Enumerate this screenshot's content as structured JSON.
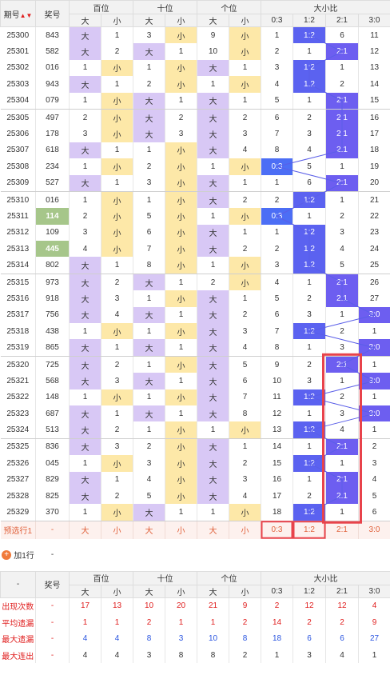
{
  "header": {
    "issue": "期号",
    "prize": "奖号",
    "hundreds": "百位",
    "tens": "十位",
    "units": "个位",
    "ratio": "大小比",
    "big": "大",
    "small": "小",
    "ratios": [
      "0:3",
      "1:2",
      "2:1",
      "3:0"
    ]
  },
  "rows": [
    {
      "issue": "25300",
      "prize": "843",
      "h": [
        "大",
        "1"
      ],
      "t": [
        "3",
        "小"
      ],
      "u": [
        "9",
        "小"
      ],
      "r": [
        "1",
        "1:2",
        "6",
        "11"
      ],
      "hl": 1
    },
    {
      "issue": "25301",
      "prize": "582",
      "h": [
        "大",
        "2"
      ],
      "t": [
        "大",
        "1"
      ],
      "u": [
        "10",
        "小"
      ],
      "r": [
        "2",
        "1",
        "2:1",
        "12"
      ],
      "hl": 2
    },
    {
      "issue": "25302",
      "prize": "016",
      "h": [
        "1",
        "小"
      ],
      "t": [
        "1",
        "小"
      ],
      "u": [
        "大",
        "1"
      ],
      "r": [
        "3",
        "1:2",
        "1",
        "13"
      ],
      "hl": 1
    },
    {
      "issue": "25303",
      "prize": "943",
      "h": [
        "大",
        "1"
      ],
      "t": [
        "2",
        "小"
      ],
      "u": [
        "1",
        "小"
      ],
      "r": [
        "4",
        "1:2",
        "2",
        "14"
      ],
      "hl": 1
    },
    {
      "issue": "25304",
      "prize": "079",
      "h": [
        "1",
        "小"
      ],
      "t": [
        "大",
        "1"
      ],
      "u": [
        "大",
        "1"
      ],
      "r": [
        "5",
        "1",
        "2:1",
        "15"
      ],
      "hl": 2
    },
    {
      "issue": "25305",
      "prize": "497",
      "h": [
        "2",
        "小"
      ],
      "t": [
        "大",
        "2"
      ],
      "u": [
        "大",
        "2"
      ],
      "r": [
        "6",
        "2",
        "2:1",
        "16"
      ],
      "hl": 2
    },
    {
      "issue": "25306",
      "prize": "178",
      "h": [
        "3",
        "小"
      ],
      "t": [
        "大",
        "3"
      ],
      "u": [
        "大",
        "3"
      ],
      "r": [
        "7",
        "3",
        "2:1",
        "17"
      ],
      "hl": 2
    },
    {
      "issue": "25307",
      "prize": "618",
      "h": [
        "大",
        "1"
      ],
      "t": [
        "1",
        "小"
      ],
      "u": [
        "大",
        "4"
      ],
      "r": [
        "8",
        "4",
        "2:1",
        "18"
      ],
      "hl": 2
    },
    {
      "issue": "25308",
      "prize": "234",
      "h": [
        "1",
        "小"
      ],
      "t": [
        "2",
        "小"
      ],
      "u": [
        "1",
        "小"
      ],
      "r": [
        "0:3",
        "5",
        "1",
        "19"
      ],
      "hl": 0
    },
    {
      "issue": "25309",
      "prize": "527",
      "h": [
        "大",
        "1"
      ],
      "t": [
        "3",
        "小"
      ],
      "u": [
        "大",
        "1"
      ],
      "r": [
        "1",
        "6",
        "2:1",
        "20"
      ],
      "hl": 2
    },
    {
      "issue": "25310",
      "prize": "016",
      "h": [
        "1",
        "小"
      ],
      "t": [
        "1",
        "小"
      ],
      "u": [
        "大",
        "2"
      ],
      "r": [
        "2",
        "1:2",
        "1",
        "21"
      ],
      "hl": 1
    },
    {
      "issue": "25311",
      "prize": "114",
      "h": [
        "2",
        "小"
      ],
      "t": [
        "5",
        "小"
      ],
      "u": [
        "1",
        "小"
      ],
      "r": [
        "0:3",
        "1",
        "2",
        "22"
      ],
      "hl": 0,
      "green": true
    },
    {
      "issue": "25312",
      "prize": "109",
      "h": [
        "3",
        "小"
      ],
      "t": [
        "6",
        "小"
      ],
      "u": [
        "大",
        "1"
      ],
      "r": [
        "1",
        "1:2",
        "3",
        "23"
      ],
      "hl": 1
    },
    {
      "issue": "25313",
      "prize": "445",
      "h": [
        "4",
        "小"
      ],
      "t": [
        "7",
        "小"
      ],
      "u": [
        "大",
        "2"
      ],
      "r": [
        "2",
        "1:2",
        "4",
        "24"
      ],
      "hl": 1,
      "green": true
    },
    {
      "issue": "25314",
      "prize": "802",
      "h": [
        "大",
        "1"
      ],
      "t": [
        "8",
        "小"
      ],
      "u": [
        "1",
        "小"
      ],
      "r": [
        "3",
        "1:2",
        "5",
        "25"
      ],
      "hl": 1
    },
    {
      "issue": "25315",
      "prize": "973",
      "h": [
        "大",
        "2"
      ],
      "t": [
        "大",
        "1"
      ],
      "u": [
        "2",
        "小"
      ],
      "r": [
        "4",
        "1",
        "2:1",
        "26"
      ],
      "hl": 2
    },
    {
      "issue": "25316",
      "prize": "918",
      "h": [
        "大",
        "3"
      ],
      "t": [
        "1",
        "小"
      ],
      "u": [
        "大",
        "1"
      ],
      "r": [
        "5",
        "2",
        "2:1",
        "27"
      ],
      "hl": 2
    },
    {
      "issue": "25317",
      "prize": "756",
      "h": [
        "大",
        "4"
      ],
      "t": [
        "大",
        "1"
      ],
      "u": [
        "大",
        "2"
      ],
      "r": [
        "6",
        "3",
        "1",
        "3:0"
      ],
      "hl": 3
    },
    {
      "issue": "25318",
      "prize": "438",
      "h": [
        "1",
        "小"
      ],
      "t": [
        "1",
        "小"
      ],
      "u": [
        "大",
        "3"
      ],
      "r": [
        "7",
        "1:2",
        "2",
        "1"
      ],
      "hl": 1
    },
    {
      "issue": "25319",
      "prize": "865",
      "h": [
        "大",
        "1"
      ],
      "t": [
        "大",
        "1"
      ],
      "u": [
        "大",
        "4"
      ],
      "r": [
        "8",
        "1",
        "3",
        "3:0"
      ],
      "hl": 3
    },
    {
      "issue": "25320",
      "prize": "725",
      "h": [
        "大",
        "2"
      ],
      "t": [
        "1",
        "小"
      ],
      "u": [
        "大",
        "5"
      ],
      "r": [
        "9",
        "2",
        "2:1",
        "1"
      ],
      "hl": 2
    },
    {
      "issue": "25321",
      "prize": "568",
      "h": [
        "大",
        "3"
      ],
      "t": [
        "大",
        "1"
      ],
      "u": [
        "大",
        "6"
      ],
      "r": [
        "10",
        "3",
        "1",
        "3:0"
      ],
      "hl": 3
    },
    {
      "issue": "25322",
      "prize": "148",
      "h": [
        "1",
        "小"
      ],
      "t": [
        "1",
        "小"
      ],
      "u": [
        "大",
        "7"
      ],
      "r": [
        "11",
        "1:2",
        "2",
        "1"
      ],
      "hl": 1
    },
    {
      "issue": "25323",
      "prize": "687",
      "h": [
        "大",
        "1"
      ],
      "t": [
        "大",
        "1"
      ],
      "u": [
        "大",
        "8"
      ],
      "r": [
        "12",
        "1",
        "3",
        "3:0"
      ],
      "hl": 3
    },
    {
      "issue": "25324",
      "prize": "513",
      "h": [
        "大",
        "2"
      ],
      "t": [
        "1",
        "小"
      ],
      "u": [
        "1",
        "小"
      ],
      "r": [
        "13",
        "1:2",
        "4",
        "1"
      ],
      "hl": 1
    },
    {
      "issue": "25325",
      "prize": "836",
      "h": [
        "大",
        "3"
      ],
      "t": [
        "2",
        "小"
      ],
      "u": [
        "大",
        "1"
      ],
      "r": [
        "14",
        "1",
        "2:1",
        "2"
      ],
      "hl": 2
    },
    {
      "issue": "25326",
      "prize": "045",
      "h": [
        "1",
        "小"
      ],
      "t": [
        "3",
        "小"
      ],
      "u": [
        "大",
        "2"
      ],
      "r": [
        "15",
        "1:2",
        "1",
        "3"
      ],
      "hl": 1
    },
    {
      "issue": "25327",
      "prize": "829",
      "h": [
        "大",
        "1"
      ],
      "t": [
        "4",
        "小"
      ],
      "u": [
        "大",
        "3"
      ],
      "r": [
        "16",
        "1",
        "2:1",
        "4"
      ],
      "hl": 2
    },
    {
      "issue": "25328",
      "prize": "825",
      "h": [
        "大",
        "2"
      ],
      "t": [
        "5",
        "小"
      ],
      "u": [
        "大",
        "4"
      ],
      "r": [
        "17",
        "2",
        "2:1",
        "5"
      ],
      "hl": 2
    },
    {
      "issue": "25329",
      "prize": "370",
      "h": [
        "1",
        "小"
      ],
      "t": [
        "大",
        "1"
      ],
      "u": [
        "1",
        "小"
      ],
      "r": [
        "18",
        "1:2",
        "1",
        "6"
      ],
      "hl": 1
    }
  ],
  "predict": {
    "label": "预选行1",
    "prize": "-",
    "cells": [
      "大",
      "小",
      "大",
      "小",
      "大",
      "小",
      "0:3",
      "1:2",
      "2:1",
      "3:0"
    ]
  },
  "add": {
    "label": "加1行",
    "plus": "+",
    "dash": "-"
  },
  "stats_header": {
    "dash": "-"
  },
  "stats": [
    {
      "label": "出现次数",
      "prize": "-",
      "vals": [
        "17",
        "13",
        "10",
        "20",
        "21",
        "9",
        "2",
        "12",
        "12",
        "4"
      ],
      "cls": "v-red"
    },
    {
      "label": "平均遗漏",
      "prize": "-",
      "vals": [
        "1",
        "1",
        "2",
        "1",
        "1",
        "2",
        "14",
        "2",
        "2",
        "9"
      ],
      "cls": "v-red"
    },
    {
      "label": "最大遗漏",
      "prize": "-",
      "vals": [
        "4",
        "4",
        "8",
        "3",
        "10",
        "8",
        "18",
        "6",
        "6",
        "27"
      ],
      "cls": "v-blue"
    },
    {
      "label": "最大连出",
      "prize": "-",
      "vals": [
        "4",
        "4",
        "3",
        "8",
        "8",
        "2",
        "1",
        "3",
        "4",
        "1"
      ],
      "cls": "v-dark"
    }
  ]
}
